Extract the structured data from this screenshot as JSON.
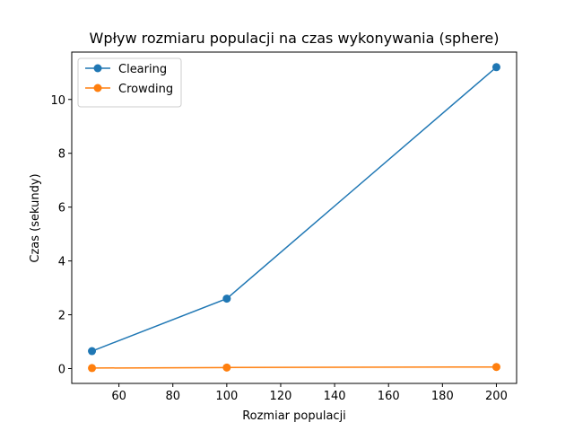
{
  "chart_data": {
    "type": "line",
    "title": "Wpływ rozmiaru populacji na czas wykonywania (sphere)",
    "xlabel": "Rozmiar populacji",
    "ylabel": "Czas (sekundy)",
    "xlim": [
      42.5,
      207.5
    ],
    "ylim": [
      -0.55,
      11.76
    ],
    "xticks": [
      60,
      80,
      100,
      120,
      140,
      160,
      180,
      200
    ],
    "yticks": [
      0,
      2,
      4,
      6,
      8,
      10
    ],
    "grid": false,
    "legend_position": "top-left",
    "series": [
      {
        "name": "Clearing",
        "color": "#1f77b4",
        "x": [
          50,
          100,
          200
        ],
        "y": [
          0.65,
          2.6,
          11.2
        ]
      },
      {
        "name": "Crowding",
        "color": "#ff7f0e",
        "x": [
          50,
          100,
          200
        ],
        "y": [
          0.02,
          0.04,
          0.06
        ]
      }
    ]
  }
}
